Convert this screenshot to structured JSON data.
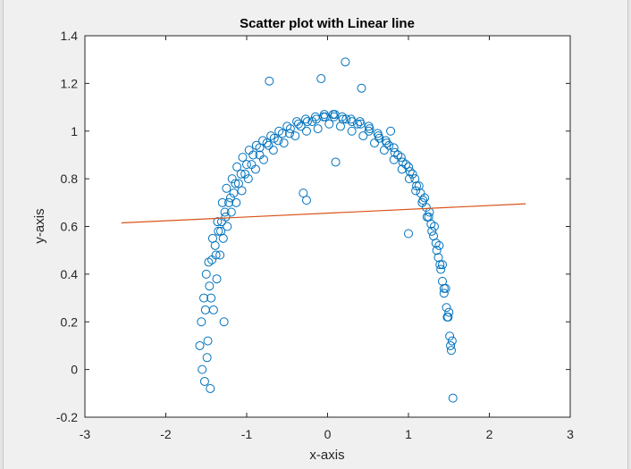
{
  "chart_data": {
    "type": "scatter",
    "title": "Scatter plot with Linear line",
    "xlabel": "x-axis",
    "ylabel": "y-axis",
    "xlim": [
      -3,
      3
    ],
    "ylim": [
      -0.2,
      1.4
    ],
    "x_ticks": [
      -3,
      -2,
      -1,
      0,
      1,
      2,
      3
    ],
    "y_ticks": [
      -0.2,
      0,
      0.2,
      0.4,
      0.6,
      0.8,
      1,
      1.2,
      1.4
    ],
    "x_tick_labels": [
      "-3",
      "-2",
      "-1",
      "0",
      "1",
      "2",
      "3"
    ],
    "y_tick_labels": [
      "-0.2",
      "0",
      "0.2",
      "0.4",
      "0.6",
      "0.8",
      "1",
      "1.2",
      "1.4"
    ],
    "grid": false,
    "series": [
      {
        "type": "scatter",
        "marker": "open-circle",
        "color": "#0072BD",
        "x": [
          -1.58,
          -1.56,
          -1.55,
          -1.53,
          -1.52,
          -1.5,
          -1.48,
          -1.46,
          -1.45,
          -1.43,
          -1.41,
          -1.39,
          -1.37,
          -1.35,
          -1.33,
          -1.31,
          -1.29,
          -1.27,
          -1.24,
          -1.22,
          -1.19,
          -1.16,
          -1.13,
          -1.1,
          -1.06,
          -1.02,
          -0.98,
          -0.94,
          -0.89,
          -0.84,
          -0.79,
          -0.73,
          -0.67,
          -0.61,
          -0.54,
          -0.47,
          -0.4,
          -0.33,
          -0.26,
          -0.19,
          -0.12,
          -0.05,
          0.02,
          0.09,
          0.16,
          0.23,
          0.3,
          0.37,
          0.44,
          0.51,
          0.58,
          0.64,
          0.7,
          0.76,
          0.82,
          0.87,
          0.92,
          0.97,
          1.01,
          1.05,
          1.09,
          1.13,
          1.17,
          1.2,
          1.23,
          1.26,
          1.29,
          1.32,
          1.35,
          1.38,
          1.4,
          1.42,
          1.44,
          1.46,
          1.48,
          1.5,
          1.52,
          1.54,
          -1.51,
          -1.47,
          -1.42,
          -1.36,
          -1.3,
          -1.25,
          -1.18,
          -1.12,
          -1.05,
          -0.97,
          -0.88,
          -0.8,
          -0.7,
          -0.6,
          -0.5,
          -0.38,
          -0.27,
          -0.15,
          -0.04,
          0.07,
          0.18,
          0.29,
          0.4,
          0.51,
          0.62,
          0.72,
          0.82,
          0.91,
          1.0,
          1.08,
          1.15,
          1.22,
          1.28,
          1.34,
          1.39,
          1.44,
          1.49,
          1.53,
          -1.49,
          -1.44,
          -1.38,
          -1.32,
          -1.26,
          -1.2,
          -1.14,
          -1.07,
          -1.0,
          -0.92,
          -0.84,
          -0.75,
          -0.66,
          -0.56,
          -0.46,
          -0.36,
          -0.25,
          -0.14,
          -0.03,
          0.08,
          0.19,
          0.3,
          0.41,
          0.52,
          0.63,
          0.73,
          0.83,
          0.93,
          1.02,
          1.1,
          1.18,
          1.25,
          1.31,
          1.37,
          1.42,
          1.47,
          1.51,
          1.55,
          -0.72,
          0.22,
          -0.08,
          0.42,
          -1.28,
          -0.3,
          1.0,
          0.78,
          -0.26,
          0.1
        ],
        "y": [
          0.1,
          0.2,
          0.0,
          0.3,
          -0.05,
          0.4,
          0.12,
          0.35,
          -0.08,
          0.46,
          0.25,
          0.52,
          0.38,
          0.58,
          0.48,
          0.62,
          0.55,
          0.66,
          0.6,
          0.7,
          0.66,
          0.74,
          0.7,
          0.78,
          0.75,
          0.82,
          0.8,
          0.86,
          0.84,
          0.9,
          0.88,
          0.94,
          0.92,
          0.96,
          0.95,
          0.99,
          0.98,
          1.02,
          1.0,
          1.04,
          1.01,
          1.06,
          1.03,
          1.07,
          1.02,
          1.05,
          1.0,
          1.03,
          0.98,
          1.0,
          0.95,
          0.97,
          0.92,
          0.94,
          0.88,
          0.9,
          0.84,
          0.86,
          0.8,
          0.82,
          0.75,
          0.77,
          0.7,
          0.72,
          0.64,
          0.66,
          0.58,
          0.6,
          0.5,
          0.52,
          0.42,
          0.44,
          0.32,
          0.34,
          0.22,
          0.24,
          0.1,
          0.12,
          0.25,
          0.45,
          0.55,
          0.62,
          0.7,
          0.76,
          0.8,
          0.85,
          0.89,
          0.92,
          0.94,
          0.96,
          0.98,
          1.0,
          1.02,
          1.04,
          1.05,
          1.06,
          1.07,
          1.07,
          1.06,
          1.05,
          1.04,
          1.02,
          0.99,
          0.96,
          0.93,
          0.89,
          0.85,
          0.8,
          0.74,
          0.68,
          0.61,
          0.53,
          0.44,
          0.34,
          0.22,
          0.08,
          0.05,
          0.3,
          0.48,
          0.58,
          0.64,
          0.72,
          0.78,
          0.82,
          0.86,
          0.9,
          0.93,
          0.95,
          0.97,
          0.99,
          1.01,
          1.03,
          1.04,
          1.05,
          1.06,
          1.06,
          1.05,
          1.04,
          1.03,
          1.01,
          0.98,
          0.95,
          0.91,
          0.87,
          0.83,
          0.77,
          0.71,
          0.64,
          0.56,
          0.47,
          0.37,
          0.26,
          0.14,
          -0.12,
          1.21,
          1.29,
          1.22,
          1.18,
          0.2,
          0.74,
          0.57,
          1.0,
          0.71,
          0.87
        ],
        "name": ""
      },
      {
        "type": "line",
        "color": "#D95319",
        "x": [
          -2.55,
          2.45
        ],
        "y": [
          0.615,
          0.695
        ],
        "name": ""
      }
    ]
  }
}
